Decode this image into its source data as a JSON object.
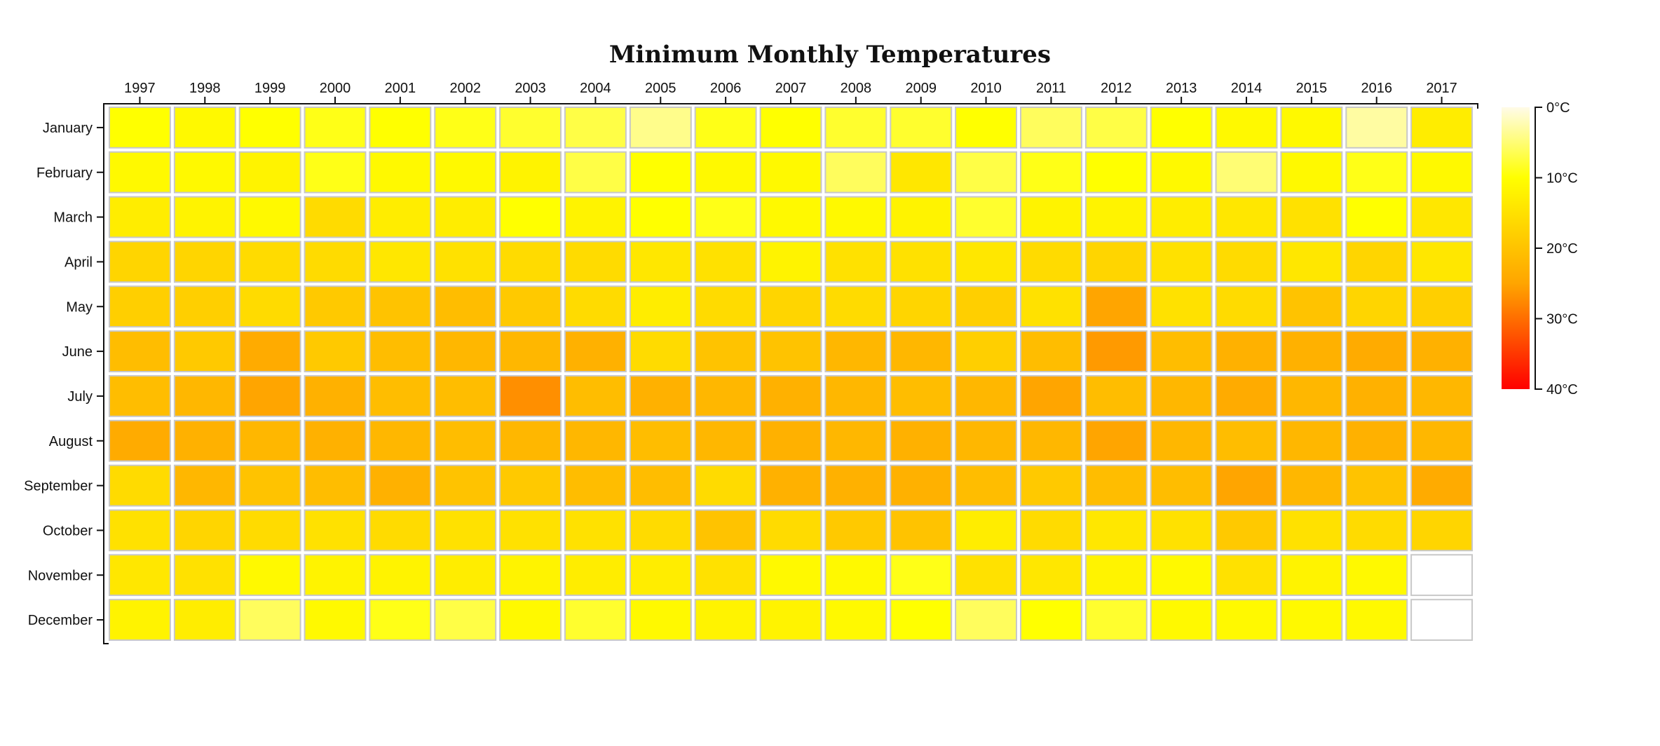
{
  "chart_data": {
    "type": "heatmap",
    "title": "Minimum Monthly Temperatures",
    "x": [
      "1997",
      "1998",
      "1999",
      "2000",
      "2001",
      "2002",
      "2003",
      "2004",
      "2005",
      "2006",
      "2007",
      "2008",
      "2009",
      "2010",
      "2011",
      "2012",
      "2013",
      "2014",
      "2015",
      "2016",
      "2017"
    ],
    "y": [
      "January",
      "February",
      "March",
      "April",
      "May",
      "June",
      "July",
      "August",
      "September",
      "October",
      "November",
      "December"
    ],
    "unit": "°C",
    "color_scale": {
      "domain": [
        0,
        40
      ],
      "ticks": [
        "0°C",
        "10°C",
        "20°C",
        "30°C",
        "40°C"
      ],
      "colors": [
        "#fffbe8",
        "#ffff00",
        "#ffa500",
        "#ff0000"
      ],
      "stops": [
        0,
        10,
        25,
        40
      ]
    },
    "missing_color": "#ffffff",
    "values": [
      [
        10,
        11,
        10,
        9,
        10,
        9,
        8,
        7,
        4,
        9,
        10,
        8,
        8,
        10,
        6,
        7,
        10,
        11,
        11,
        3,
        13
      ],
      [
        11,
        11,
        12,
        9,
        11,
        11,
        12,
        7,
        10,
        11,
        11,
        6,
        14,
        7,
        9,
        10,
        11,
        5,
        11,
        9,
        11
      ],
      [
        13,
        12,
        11,
        16,
        13,
        13,
        10,
        12,
        10,
        9,
        11,
        11,
        12,
        8,
        12,
        12,
        13,
        14,
        15,
        10,
        14
      ],
      [
        17,
        17,
        16,
        16,
        14,
        15,
        16,
        16,
        14,
        15,
        12,
        15,
        15,
        14,
        16,
        17,
        15,
        16,
        14,
        17,
        14
      ],
      [
        18,
        18,
        16,
        19,
        20,
        21,
        19,
        16,
        13,
        16,
        17,
        16,
        17,
        18,
        15,
        25,
        15,
        16,
        20,
        17,
        18
      ],
      [
        21,
        19,
        24,
        19,
        21,
        22,
        22,
        23,
        16,
        20,
        20,
        22,
        22,
        18,
        21,
        26,
        21,
        23,
        23,
        24,
        23
      ],
      [
        21,
        22,
        25,
        23,
        21,
        21,
        27,
        21,
        23,
        22,
        23,
        22,
        21,
        22,
        25,
        21,
        22,
        24,
        22,
        23,
        22
      ],
      [
        24,
        23,
        22,
        23,
        22,
        21,
        22,
        22,
        21,
        22,
        23,
        22,
        23,
        22,
        22,
        25,
        22,
        21,
        22,
        23,
        22
      ],
      [
        16,
        22,
        20,
        21,
        23,
        20,
        19,
        21,
        21,
        16,
        23,
        23,
        23,
        21,
        19,
        21,
        21,
        25,
        22,
        20,
        24
      ],
      [
        15,
        17,
        16,
        15,
        16,
        15,
        15,
        15,
        16,
        20,
        16,
        19,
        20,
        13,
        16,
        14,
        15,
        19,
        15,
        16,
        17
      ],
      [
        14,
        15,
        11,
        12,
        12,
        13,
        12,
        13,
        13,
        15,
        11,
        11,
        9,
        15,
        14,
        12,
        11,
        15,
        12,
        11,
        null
      ],
      [
        12,
        13,
        6,
        11,
        9,
        7,
        11,
        8,
        11,
        12,
        12,
        11,
        10,
        6,
        10,
        8,
        11,
        11,
        11,
        11,
        null
      ]
    ]
  }
}
